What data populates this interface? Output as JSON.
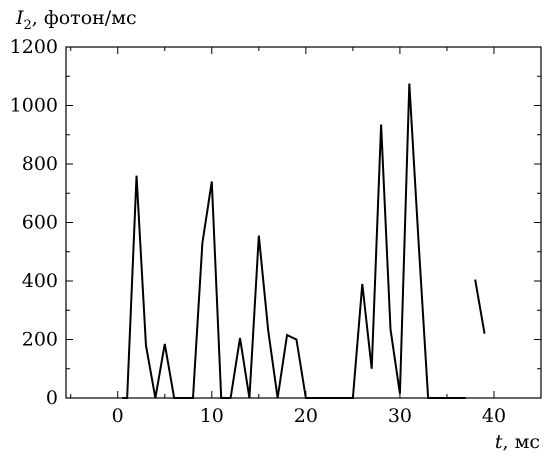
{
  "chart_data": {
    "type": "line",
    "ylabel_var": "I",
    "ylabel_sub": "2",
    "ylabel_unit": ", фотон/мс",
    "xlabel_var": "t",
    "xlabel_unit": ", мс",
    "xlim": [
      -5.5,
      45
    ],
    "ylim": [
      0,
      1200
    ],
    "xticks": [
      0,
      10,
      20,
      30,
      40
    ],
    "xtick_labels": [
      "0",
      "10",
      "20",
      "30",
      "40"
    ],
    "xminor": [
      -5,
      5,
      15,
      25,
      35,
      45
    ],
    "yticks": [
      0,
      200,
      400,
      600,
      800,
      1000,
      1200
    ],
    "ytick_labels": [
      "0",
      "200",
      "400",
      "600",
      "800",
      "1000",
      "1200"
    ],
    "yminor": [
      100,
      300,
      500,
      700,
      900,
      1100
    ],
    "segments": [
      {
        "x": [
          0.5,
          1,
          2,
          3,
          4,
          5,
          6,
          7,
          8,
          9,
          10,
          11,
          12,
          13,
          14,
          15,
          16,
          17,
          18,
          19,
          20,
          21,
          22,
          23,
          24,
          25,
          26,
          27,
          28,
          29,
          30,
          31,
          32,
          33,
          34,
          35,
          36,
          37
        ],
        "y": [
          0,
          0,
          760,
          180,
          0,
          185,
          0,
          0,
          0,
          530,
          740,
          0,
          0,
          205,
          0,
          555,
          230,
          0,
          215,
          200,
          0,
          0,
          0,
          0,
          0,
          0,
          390,
          100,
          935,
          235,
          15,
          1075,
          525,
          0,
          0,
          0,
          0,
          0
        ]
      },
      {
        "x": [
          38,
          39
        ],
        "y": [
          405,
          220
        ]
      }
    ]
  }
}
